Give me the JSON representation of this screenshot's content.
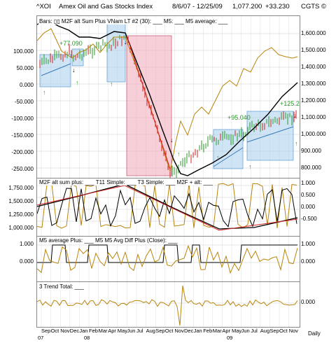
{
  "header": {
    "symbol": "^XOI",
    "name": "Amex Oil and Gas Stocks Index",
    "date_range": "8/6/07 - 12/25/09",
    "last": "1,077.200",
    "change": "+33.230",
    "brand": "CGTS ©"
  },
  "price_panel": {
    "legend": "Bars: ▯▯  M2F alt Sum Plus VNam LT #2 (30): ___   M5: ___   M5 average: ___",
    "right_ticks": [
      "1,600.000",
      "1,500.000",
      "1,400.000",
      "1,300.000",
      "1,200.000",
      "1,100.000",
      "1,000.000",
      "900.000",
      "800.000"
    ],
    "left_ticks": [
      "100.000",
      "50.000",
      "0.000",
      "-50.000",
      "-100.000",
      "-150.000",
      "-200.000",
      "-250.000"
    ],
    "annotations": [
      "+77.090",
      "+95.040",
      "+125.2"
    ]
  },
  "osc_panel": {
    "legend": "M2F alt sum plus: ___   T11 Simple: ___   T3 Simple: ___   M2F + alt: ___",
    "right_ticks": [
      "1.000",
      "0.500",
      "0.000",
      "-0.500"
    ],
    "left_ticks": [
      "1,750.000",
      "1,500.000",
      "1,250.000",
      "1,000.000"
    ]
  },
  "m5_panel": {
    "legend": "M5 average Plus: ___   M5 M5 Avg Diff Plus (Close): ___",
    "right_ticks": [
      "1.000",
      "0.000"
    ],
    "left_ticks": [
      "1.000",
      "0.000"
    ]
  },
  "trend_panel": {
    "legend": "3 Trend Total: ___",
    "right_ticks": [
      "0.000"
    ]
  },
  "x_axis": {
    "months": [
      "Sep",
      "Oct",
      "Nov",
      "Dec",
      "Jan",
      "Feb",
      "Mar",
      "Apr",
      "May",
      "Jun",
      "Jul",
      "Aug",
      "Sep",
      "Oct",
      "Nov",
      "Dec",
      "Jan",
      "Feb",
      "Mar",
      "Apr",
      "May",
      "Jun",
      "Jul",
      "Aug",
      "Sep",
      "Oct",
      "Nov"
    ],
    "years": [
      "07",
      "08",
      "09"
    ],
    "interval": "Daily"
  },
  "colors": {
    "price_line": "#b8860b",
    "avg_line": "#000000",
    "red_line": "#d42020",
    "bull_bar": "#2a9a2a",
    "bear_bar": "#d42020",
    "up_box": "#a8d0ee",
    "down_box": "#f0a8b8"
  }
}
